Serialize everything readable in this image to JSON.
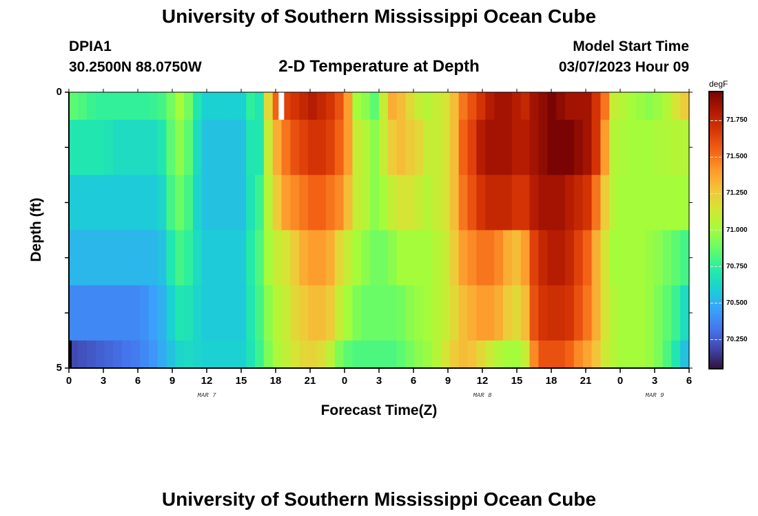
{
  "page": {
    "title": "University of Southern Mississippi Ocean Cube",
    "station": "DPIA1",
    "coords": "30.2500N  88.0750W",
    "model_label": "Model Start Time",
    "model_time": "03/07/2023 Hour 09",
    "chart_title": "2-D Temperature at Depth",
    "footer_title": "University of Southern Mississippi Ocean Cube"
  },
  "chart_data": {
    "type": "heatmap",
    "title": "2-D Temperature at Depth",
    "xlabel": "Forecast Time(Z)",
    "ylabel": "Depth (ft)",
    "units": "degF",
    "x_tick_labels": [
      "0",
      "3",
      "6",
      "9",
      "12",
      "15",
      "18",
      "21",
      "0",
      "3",
      "6",
      "9",
      "12",
      "15",
      "18",
      "21",
      "0",
      "3",
      "6"
    ],
    "date_labels": [
      {
        "label": "MAR 7",
        "at_hour": 12
      },
      {
        "label": "MAR 8",
        "at_hour": 36
      },
      {
        "label": "MAR 9",
        "at_hour": 51
      }
    ],
    "x_range_hours": [
      0,
      54
    ],
    "y_tick_labels": [
      "0",
      "5"
    ],
    "ylim": [
      0,
      5
    ],
    "colorbar": {
      "label": "degF",
      "range": [
        70.05,
        71.95
      ],
      "ticks": [
        "71.750",
        "71.500",
        "71.250",
        "71.000",
        "70.750",
        "70.500",
        "70.250"
      ],
      "tick_values": [
        71.75,
        71.5,
        71.25,
        71.0,
        70.75,
        70.5,
        70.25
      ]
    },
    "palette": [
      "#30123b",
      "#4145ab",
      "#4675ed",
      "#39a2fc",
      "#1bcfd4",
      "#24eca6",
      "#61fc6c",
      "#a4fc3b",
      "#d1e834",
      "#f3c63a",
      "#fe9b2d",
      "#f36315",
      "#d93806",
      "#b11901",
      "#7a0403"
    ],
    "depth_rows": [
      {
        "y0": 0.0,
        "y1": 0.5,
        "values": [
          70.85,
          70.82,
          70.78,
          70.76,
          70.76,
          70.76,
          70.76,
          70.76,
          70.76,
          70.77,
          70.8,
          70.9,
          71.0,
          70.9,
          70.7,
          70.6,
          70.6,
          70.6,
          70.6,
          70.6,
          70.75,
          70.7,
          71.2,
          71.55,
          71.65,
          71.7,
          71.75,
          71.8,
          71.75,
          71.7,
          71.6,
          71.4,
          71.0,
          70.95,
          70.85,
          71.1,
          71.35,
          71.3,
          71.2,
          71.1,
          71.05,
          71.1,
          71.15,
          71.3,
          71.5,
          71.6,
          71.7,
          71.8,
          71.85,
          71.85,
          71.8,
          71.75,
          71.85,
          71.9,
          71.95,
          71.9,
          71.85,
          71.85,
          71.85,
          71.7,
          71.5,
          71.1,
          71.05,
          71.0,
          70.98,
          70.95,
          70.98,
          71.05,
          71.15,
          71.25
        ]
      },
      {
        "y0": 0.5,
        "y1": 1.5,
        "values": [
          70.7,
          70.7,
          70.7,
          70.7,
          70.68,
          70.65,
          70.65,
          70.65,
          70.65,
          70.65,
          70.7,
          70.85,
          70.95,
          70.85,
          70.65,
          70.55,
          70.55,
          70.55,
          70.55,
          70.55,
          70.7,
          70.7,
          71.1,
          71.35,
          71.5,
          71.6,
          71.65,
          71.7,
          71.7,
          71.65,
          71.55,
          71.4,
          71.1,
          71.05,
          70.95,
          71.1,
          71.25,
          71.3,
          71.25,
          71.2,
          71.1,
          71.1,
          71.15,
          71.3,
          71.55,
          71.65,
          71.8,
          71.85,
          71.85,
          71.85,
          71.8,
          71.8,
          71.85,
          71.9,
          71.95,
          71.95,
          71.95,
          71.9,
          71.85,
          71.7,
          71.4,
          71.05,
          71.02,
          71.0,
          71.0,
          71.0,
          71.02,
          71.03,
          71.05,
          71.05
        ]
      },
      {
        "y0": 1.5,
        "y1": 2.5,
        "values": [
          70.58,
          70.58,
          70.58,
          70.58,
          70.58,
          70.58,
          70.58,
          70.58,
          70.58,
          70.58,
          70.62,
          70.8,
          70.88,
          70.8,
          70.62,
          70.55,
          70.55,
          70.55,
          70.55,
          70.55,
          70.68,
          70.78,
          71.05,
          71.25,
          71.4,
          71.45,
          71.5,
          71.55,
          71.55,
          71.5,
          71.45,
          71.3,
          71.1,
          71.05,
          70.95,
          71.0,
          71.1,
          71.15,
          71.15,
          71.1,
          71.05,
          71.1,
          71.15,
          71.3,
          71.5,
          71.6,
          71.7,
          71.75,
          71.75,
          71.75,
          71.7,
          71.7,
          71.8,
          71.85,
          71.85,
          71.85,
          71.8,
          71.75,
          71.7,
          71.5,
          71.25,
          71.05,
          71.0,
          71.0,
          71.0,
          71.0,
          71.0,
          71.0,
          71.0,
          71.0
        ]
      },
      {
        "y0": 2.5,
        "y1": 3.5,
        "values": [
          70.52,
          70.52,
          70.52,
          70.52,
          70.52,
          70.52,
          70.52,
          70.52,
          70.52,
          70.52,
          70.55,
          70.7,
          70.8,
          70.75,
          70.65,
          70.58,
          70.58,
          70.58,
          70.58,
          70.58,
          70.72,
          70.82,
          71.0,
          71.1,
          71.15,
          71.25,
          71.35,
          71.4,
          71.4,
          71.35,
          71.2,
          71.1,
          71.0,
          70.95,
          70.9,
          70.9,
          70.95,
          71.0,
          71.0,
          71.0,
          71.0,
          71.05,
          71.1,
          71.25,
          71.4,
          71.45,
          71.5,
          71.5,
          71.45,
          71.35,
          71.3,
          71.4,
          71.65,
          71.75,
          71.8,
          71.8,
          71.75,
          71.65,
          71.55,
          71.35,
          71.15,
          71.0,
          71.0,
          71.0,
          71.0,
          70.98,
          70.95,
          70.9,
          70.85,
          70.8
        ]
      },
      {
        "y0": 3.5,
        "y1": 4.5,
        "values": [
          70.38,
          70.38,
          70.38,
          70.38,
          70.38,
          70.38,
          70.38,
          70.38,
          70.4,
          70.45,
          70.5,
          70.6,
          70.7,
          70.68,
          70.62,
          70.58,
          70.58,
          70.58,
          70.58,
          70.58,
          70.7,
          70.8,
          70.95,
          71.05,
          71.1,
          71.2,
          71.25,
          71.3,
          71.3,
          71.25,
          71.1,
          71.0,
          70.92,
          70.88,
          70.88,
          70.88,
          70.88,
          70.9,
          70.95,
          70.98,
          71.0,
          71.05,
          71.1,
          71.2,
          71.3,
          71.35,
          71.4,
          71.4,
          71.35,
          71.25,
          71.2,
          71.3,
          71.6,
          71.7,
          71.72,
          71.72,
          71.7,
          71.6,
          71.5,
          71.35,
          71.15,
          71.05,
          71.0,
          71.0,
          71.0,
          70.98,
          70.92,
          70.85,
          70.78,
          70.65
        ]
      },
      {
        "y0": 4.5,
        "y1": 5.0,
        "values": [
          70.2,
          70.22,
          70.24,
          70.26,
          70.28,
          70.3,
          70.32,
          70.34,
          70.38,
          70.42,
          70.48,
          70.55,
          70.62,
          70.64,
          70.62,
          70.6,
          70.6,
          70.6,
          70.6,
          70.6,
          70.68,
          70.78,
          70.92,
          71.02,
          71.08,
          71.15,
          71.2,
          71.22,
          71.18,
          71.08,
          70.92,
          70.85,
          70.82,
          70.82,
          70.82,
          70.82,
          70.82,
          70.85,
          70.9,
          70.95,
          70.98,
          71.05,
          71.15,
          71.25,
          71.3,
          71.28,
          71.2,
          71.12,
          71.05,
          71.0,
          71.0,
          71.1,
          71.45,
          71.6,
          71.6,
          71.6,
          71.55,
          71.45,
          71.38,
          71.28,
          71.12,
          71.05,
          71.0,
          71.0,
          71.0,
          70.98,
          70.92,
          70.82,
          70.7,
          70.55
        ]
      }
    ],
    "missing_marker": {
      "x_hour": 18.5,
      "depth_range": [
        0,
        0.5
      ],
      "color": "#ffffff"
    }
  }
}
